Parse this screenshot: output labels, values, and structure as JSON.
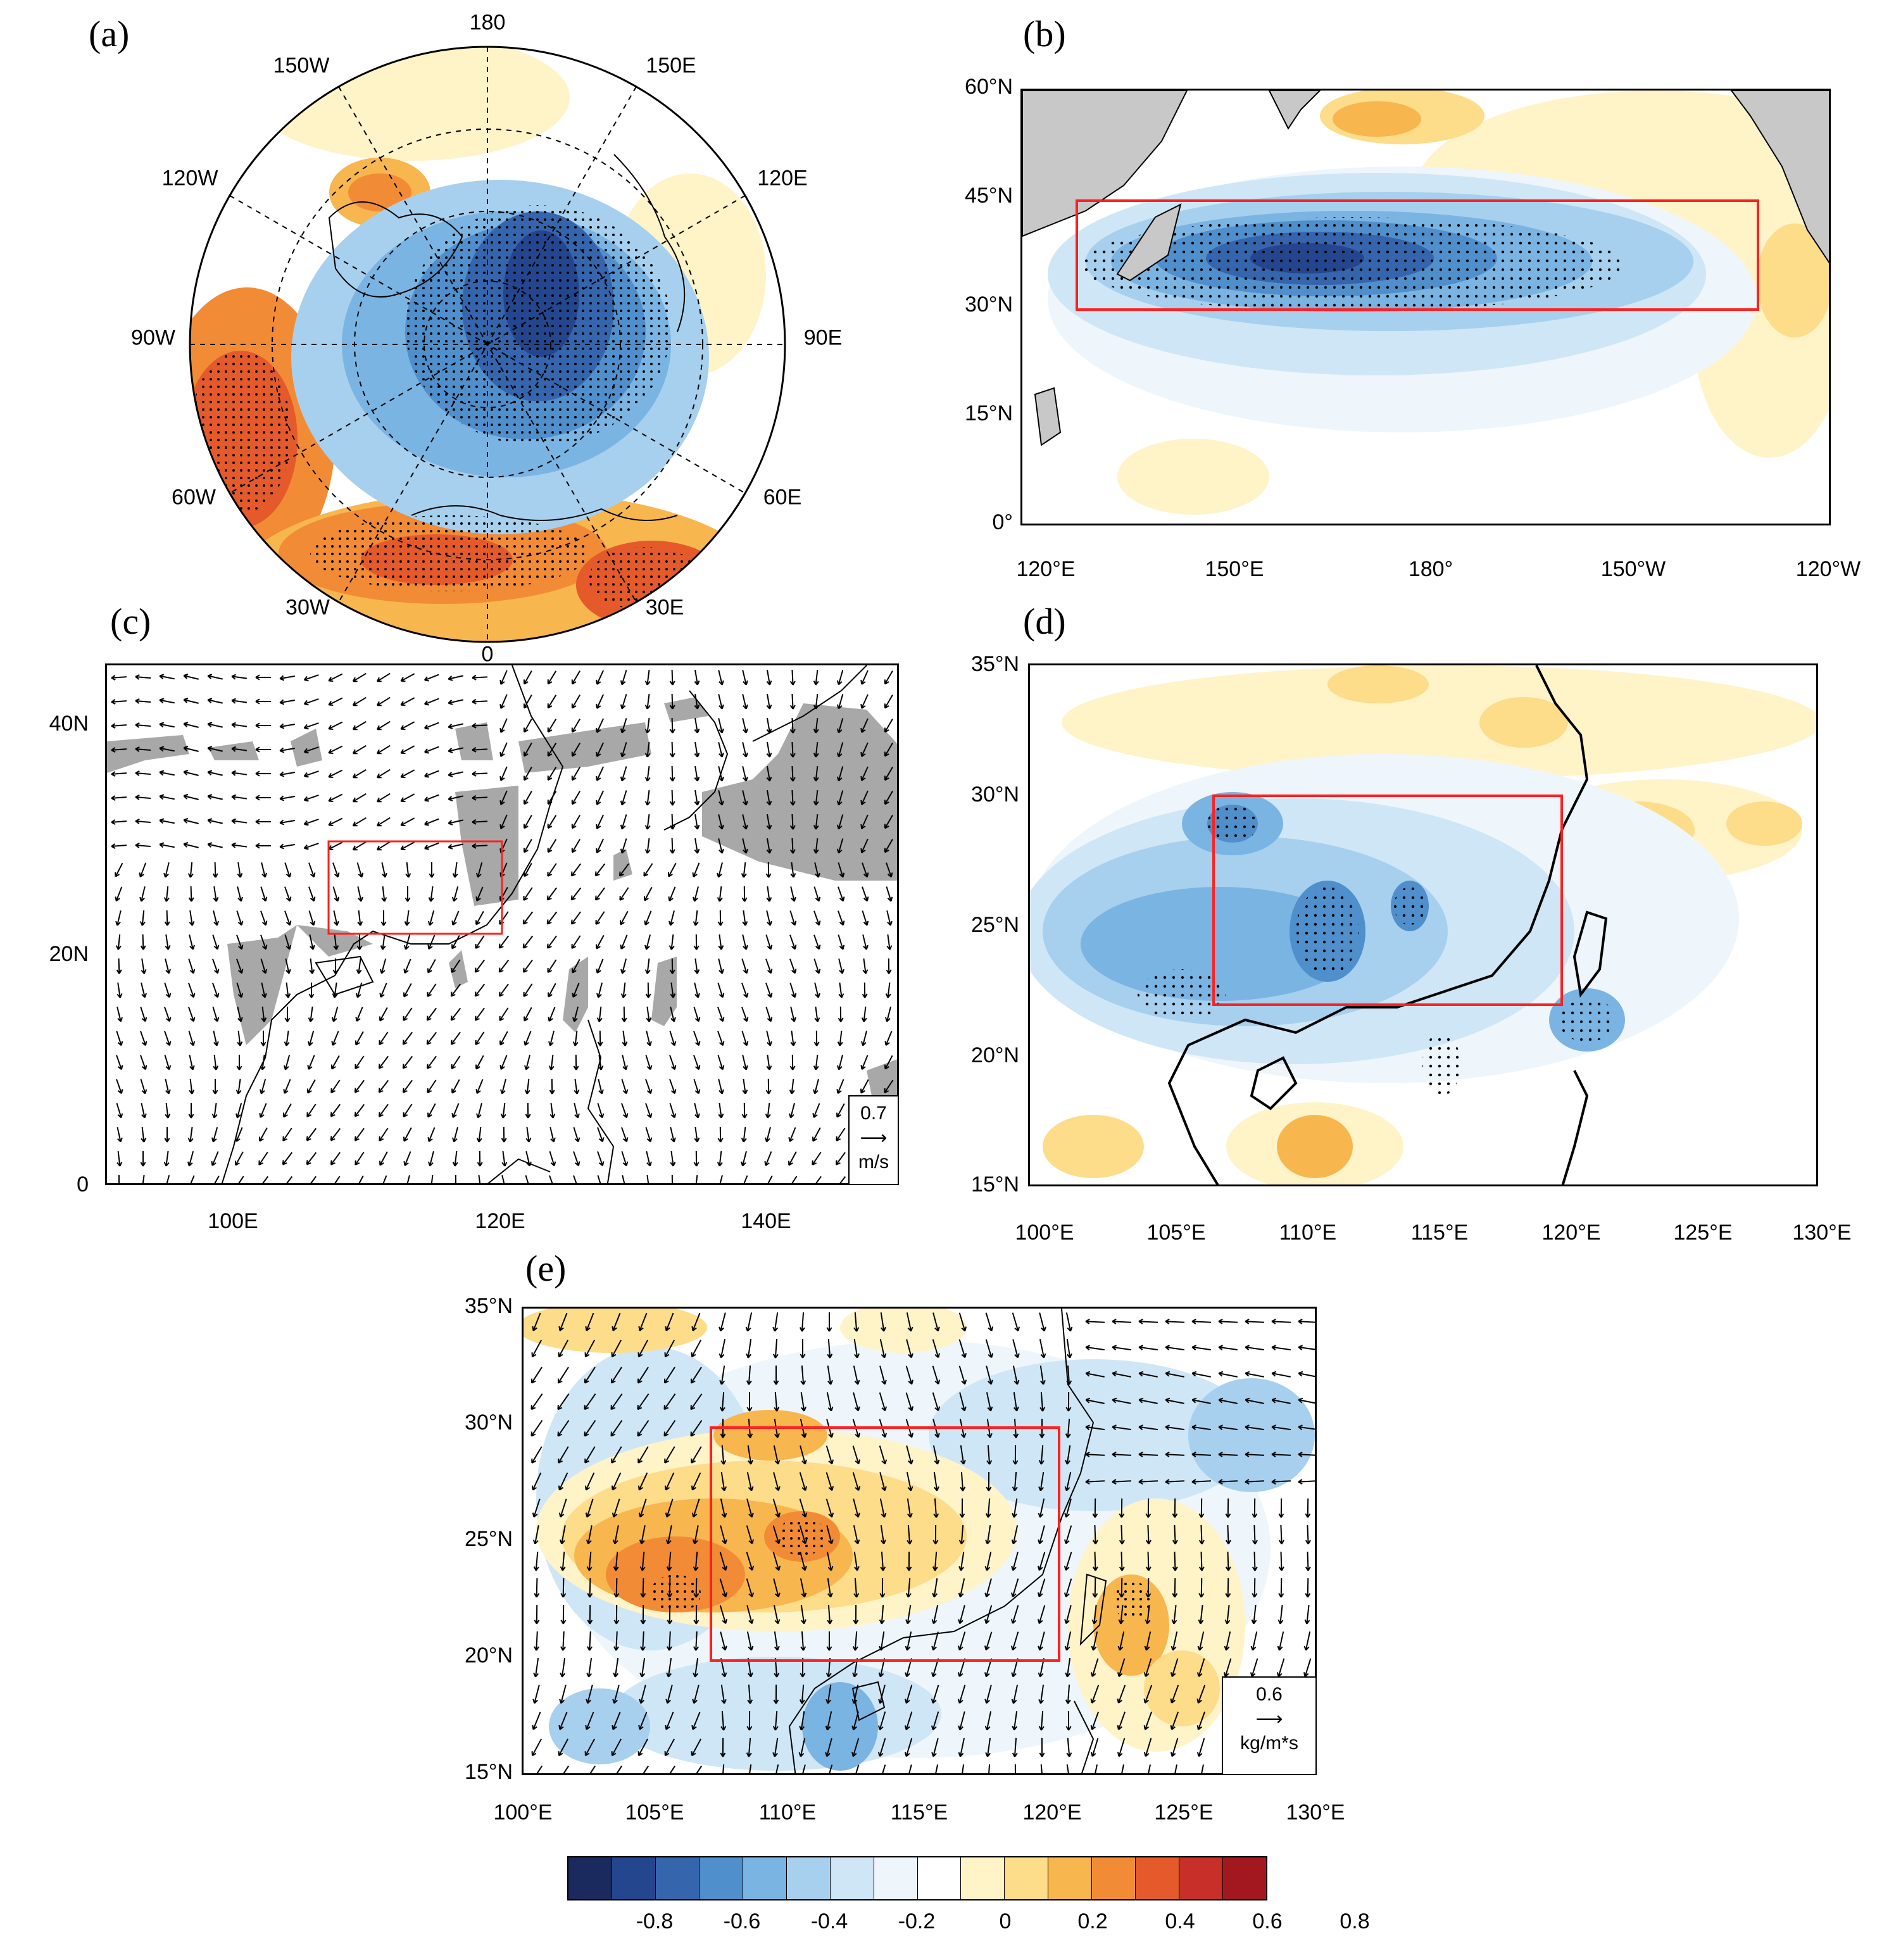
{
  "panels": {
    "a": {
      "label": "(a)",
      "polar_labels": [
        "180",
        "150E",
        "120E",
        "90E",
        "60E",
        "30E",
        "0",
        "30W",
        "60W",
        "90W",
        "120W",
        "150W"
      ]
    },
    "b": {
      "label": "(b)",
      "lat_labels": [
        "60°N",
        "45°N",
        "30°N",
        "15°N",
        "0°"
      ],
      "lon_labels": [
        "120°E",
        "150°E",
        "180°",
        "150°W",
        "120°W"
      ]
    },
    "c": {
      "label": "(c)",
      "lat_labels": [
        "40N",
        "20N",
        "0"
      ],
      "lon_labels": [
        "100E",
        "120E",
        "140E"
      ],
      "ref_value": "0.7",
      "ref_unit": "m/s"
    },
    "d": {
      "label": "(d)",
      "lat_labels": [
        "35°N",
        "30°N",
        "25°N",
        "20°N",
        "15°N"
      ],
      "lon_labels": [
        "100°E",
        "105°E",
        "110°E",
        "115°E",
        "120°E",
        "125°E",
        "130°E"
      ]
    },
    "e": {
      "label": "(e)",
      "lat_labels": [
        "35°N",
        "30°N",
        "25°N",
        "20°N",
        "15°N"
      ],
      "lon_labels": [
        "100°E",
        "105°E",
        "110°E",
        "115°E",
        "120°E",
        "125°E",
        "130°E"
      ],
      "ref_value": "0.6",
      "ref_unit": "kg/m*s"
    }
  },
  "colorbar": {
    "labels": [
      "-0.8",
      "-0.6",
      "-0.4",
      "-0.2",
      "0",
      "0.2",
      "0.4",
      "0.6",
      "0.8"
    ],
    "colors": [
      "#1b2a5e",
      "#24468f",
      "#3465ad",
      "#4f8fcc",
      "#7ab4e2",
      "#a6d0ee",
      "#cfe6f6",
      "#eef6fb",
      "#ffffff",
      "#fff3c8",
      "#fddc8a",
      "#f8b64f",
      "#f28b36",
      "#e45a2b",
      "#c92f29",
      "#a3171e"
    ]
  },
  "colors": {
    "box": "#ff2020",
    "land": "#c8c8c8"
  }
}
